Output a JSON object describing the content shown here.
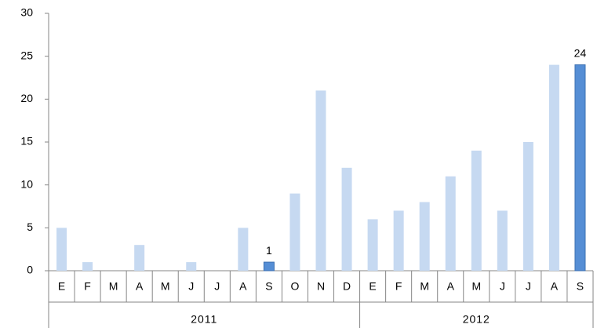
{
  "chart_data": {
    "type": "bar",
    "groups": [
      {
        "label": "2011",
        "categories": [
          "E",
          "F",
          "M",
          "A",
          "M",
          "J",
          "J",
          "A",
          "S",
          "O",
          "N",
          "D"
        ]
      },
      {
        "label": "2012",
        "categories": [
          "E",
          "F",
          "M",
          "A",
          "M",
          "J",
          "J",
          "A",
          "S"
        ]
      }
    ],
    "values": [
      5,
      1,
      0,
      3,
      0,
      1,
      0,
      5,
      1,
      9,
      21,
      12,
      6,
      7,
      8,
      11,
      14,
      7,
      15,
      24,
      24
    ],
    "colors": [
      "#c6d9f1",
      "#c6d9f1",
      "#c6d9f1",
      "#c6d9f1",
      "#c6d9f1",
      "#c6d9f1",
      "#c6d9f1",
      "#c6d9f1",
      "#558ed5",
      "#c6d9f1",
      "#c6d9f1",
      "#c6d9f1",
      "#c6d9f1",
      "#c6d9f1",
      "#c6d9f1",
      "#c6d9f1",
      "#c6d9f1",
      "#c6d9f1",
      "#c6d9f1",
      "#c6d9f1",
      "#558ed5"
    ],
    "value_labels": [
      null,
      null,
      null,
      null,
      null,
      null,
      null,
      null,
      "1",
      null,
      null,
      null,
      null,
      null,
      null,
      null,
      null,
      null,
      null,
      null,
      "24"
    ],
    "ylim": [
      0,
      30
    ],
    "yticks": [
      0,
      5,
      10,
      15,
      20,
      25,
      30
    ],
    "grid": false
  }
}
